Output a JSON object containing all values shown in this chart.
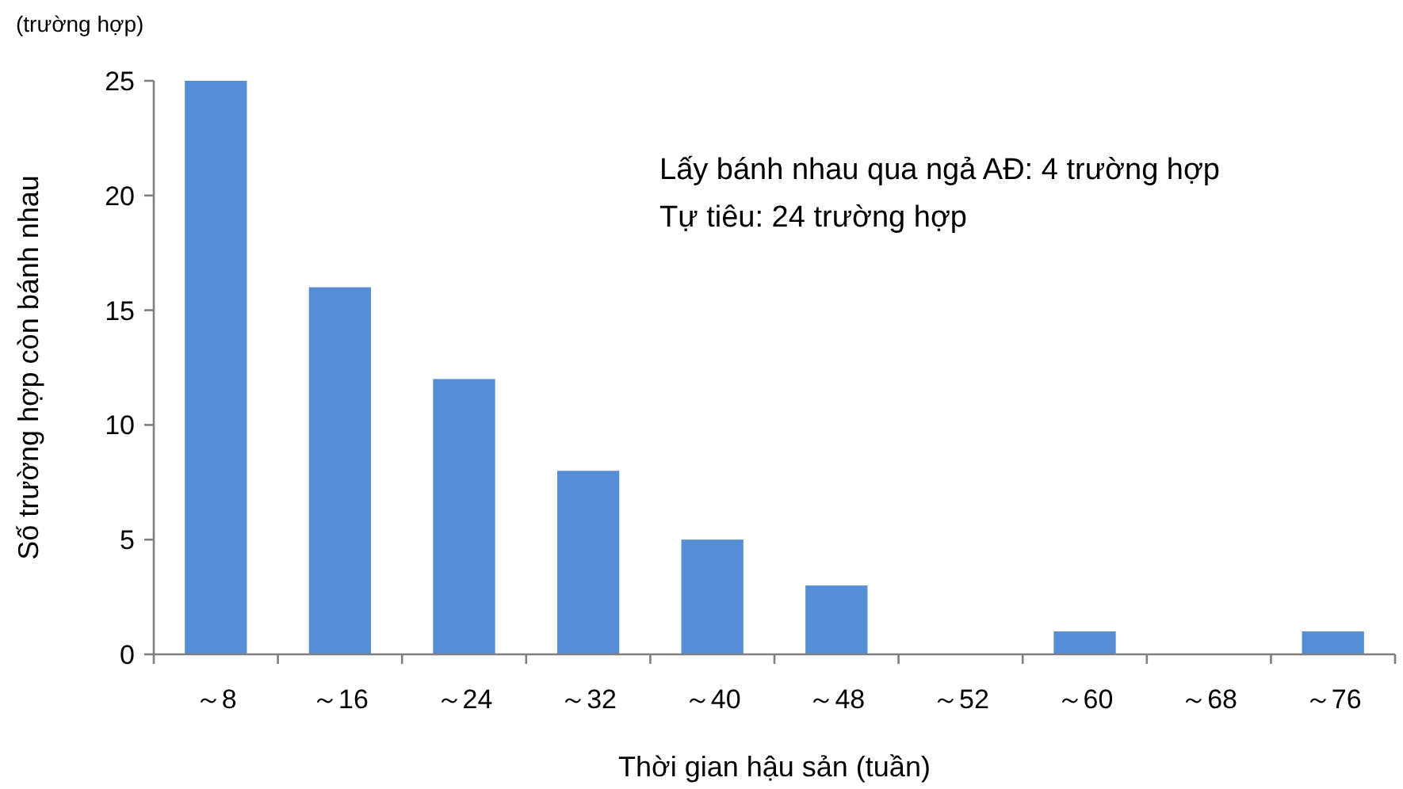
{
  "chart_data": {
    "type": "bar",
    "xlabel": "Thời gian hậu sản (tuần)",
    "ylabel": "Số trường hợp còn bánh nhau",
    "categories": [
      "～8",
      "～16",
      "～24",
      "～32",
      "～40",
      "～48",
      "～52",
      "～60",
      "～68",
      "～76"
    ],
    "values": [
      25,
      16,
      12,
      8,
      5,
      3,
      0,
      1,
      0,
      1
    ],
    "color": "#558ed5",
    "ylim": [
      0,
      25
    ],
    "yticks": [
      0,
      5,
      10,
      15,
      20,
      25
    ],
    "annotations": [
      "(trường hợp)",
      "Lấy bánh nhau qua ngả AĐ: 4 trường hợp",
      "Tự tiêu: 24 trường hợp"
    ]
  }
}
